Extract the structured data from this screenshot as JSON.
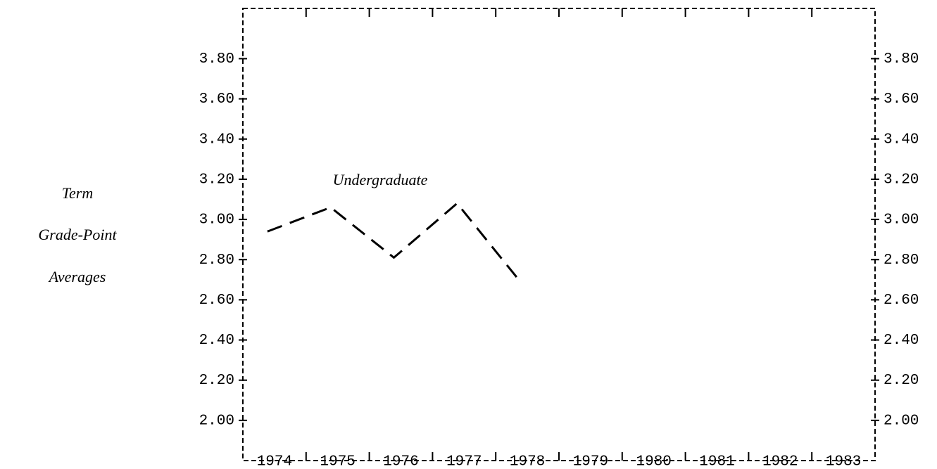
{
  "chart_data": {
    "type": "line",
    "ylabel": [
      "Term",
      "Grade-Point",
      "Averages"
    ],
    "annotation": "Undergraduate",
    "categories": [
      "1974",
      "1975",
      "1976",
      "1977",
      "1978",
      "1979",
      "1980",
      "1981",
      "1982",
      "1983"
    ],
    "series": [
      {
        "name": "Undergraduate",
        "color": "#000000",
        "values": [
          2.94,
          3.06,
          2.81,
          3.08,
          2.69,
          null,
          null,
          null,
          null,
          null
        ]
      }
    ],
    "ylim": [
      1.8,
      4.05
    ],
    "yticks": [
      {
        "value": 2,
        "label": "2.00"
      },
      {
        "value": 2.2,
        "label": "2.20"
      },
      {
        "value": 2.4,
        "label": "2.40"
      },
      {
        "value": 2.6,
        "label": "2.60"
      },
      {
        "value": 2.8,
        "label": "2.80"
      },
      {
        "value": 3,
        "label": "3.00"
      },
      {
        "value": 3.2,
        "label": "3.20"
      },
      {
        "value": 3.4,
        "label": "3.40"
      },
      {
        "value": 3.6,
        "label": "3.60"
      },
      {
        "value": 3.8,
        "label": "3.80"
      }
    ],
    "y2ticks_mirror": true,
    "grid": false
  }
}
